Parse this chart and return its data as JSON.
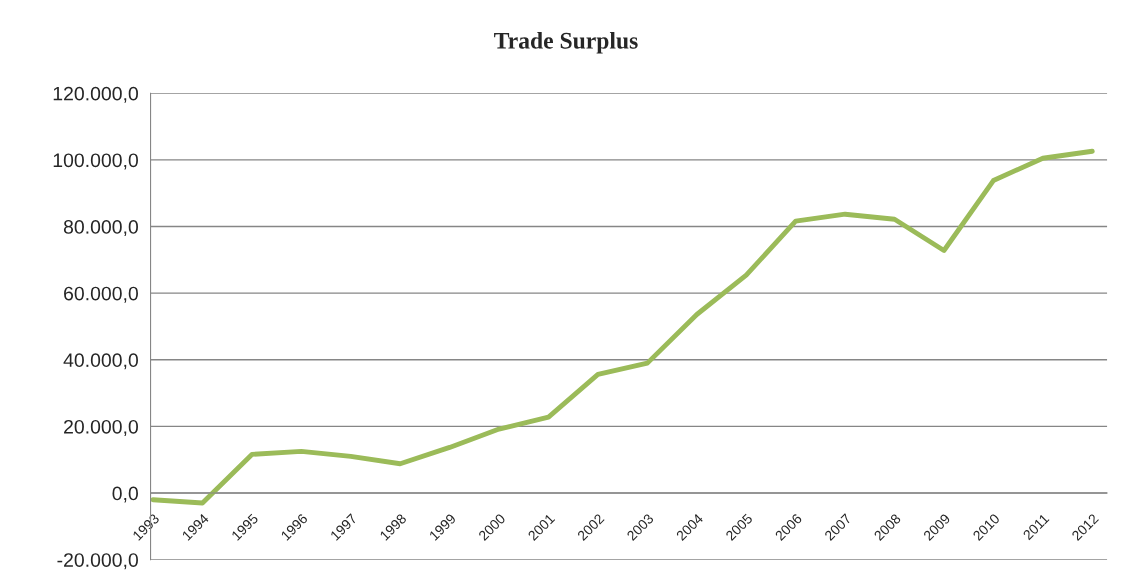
{
  "chart_data": {
    "type": "line",
    "title": "Trade Surplus",
    "categories": [
      "1993",
      "1994",
      "1995",
      "1996",
      "1997",
      "1998",
      "1999",
      "2000",
      "2001",
      "2002",
      "2003",
      "2004",
      "2005",
      "2006",
      "2007",
      "2008",
      "2009",
      "2010",
      "2011",
      "2012"
    ],
    "series": [
      {
        "color": "#9bbb59",
        "values": [
          -2000,
          -3000,
          11600,
          12500,
          11000,
          8800,
          13700,
          19200,
          22800,
          35600,
          39000,
          53600,
          65400,
          81600,
          83700,
          82200,
          72800,
          93800,
          100500,
          102600
        ]
      }
    ],
    "ylim": [
      -20000,
      120000
    ],
    "yticks": [
      {
        "value": -20000,
        "label": "-20.000,0"
      },
      {
        "value": 0,
        "label": "0,0"
      },
      {
        "value": 20000,
        "label": "20.000,0"
      },
      {
        "value": 40000,
        "label": "40.000,0"
      },
      {
        "value": 60000,
        "label": "60.000,0"
      },
      {
        "value": 80000,
        "label": "80.000,0"
      },
      {
        "value": 100000,
        "label": "100.000,0"
      },
      {
        "value": 120000,
        "label": "120.000,0"
      }
    ],
    "grid": "y",
    "legend": false,
    "marker": "none",
    "line_style": "solid"
  }
}
